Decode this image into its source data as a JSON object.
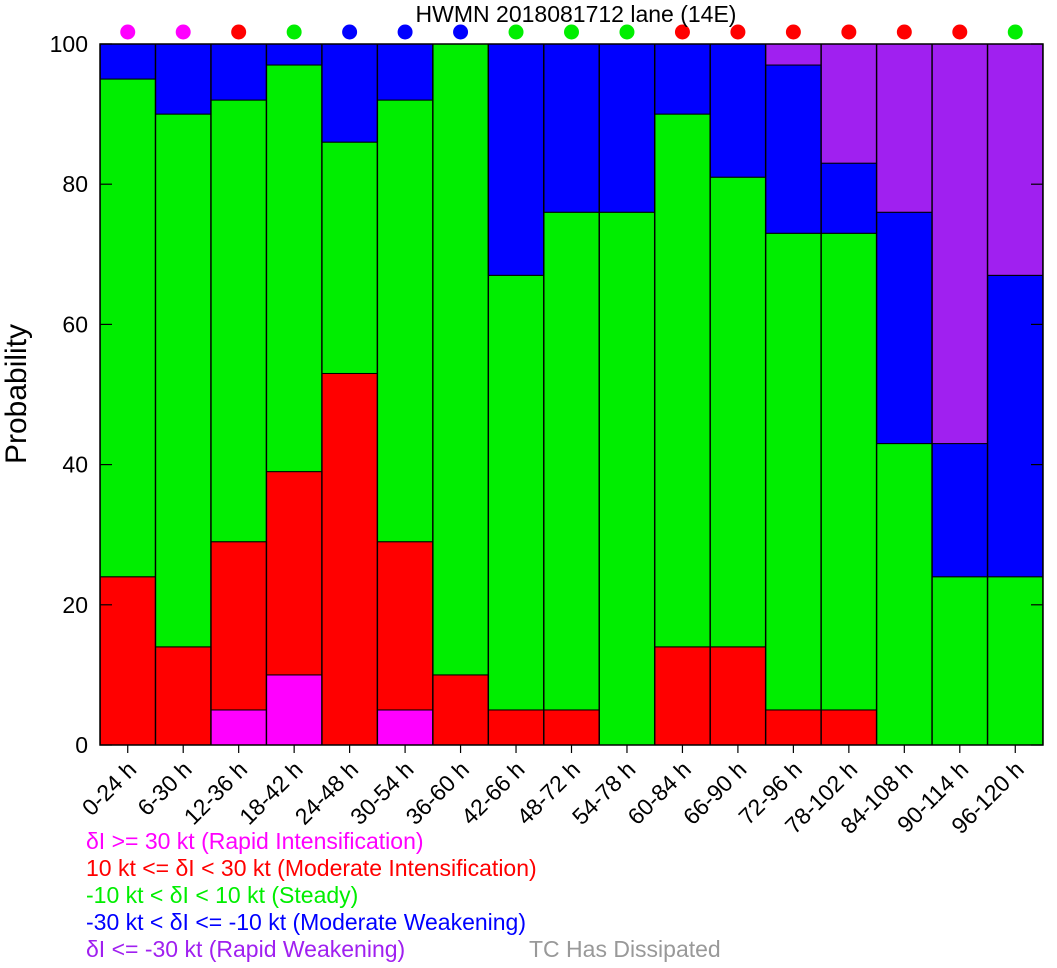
{
  "chart_data": {
    "type": "bar",
    "stacked": true,
    "title": "HWMN 2018081712 lane (14E)",
    "ylabel": "Probability",
    "xlabel": "",
    "ylim": [
      0,
      100
    ],
    "yticks": [
      "0",
      "20",
      "40",
      "60",
      "80",
      "100"
    ],
    "grid": false,
    "categories": [
      "0-24 h",
      "6-30 h",
      "12-36 h",
      "18-42 h",
      "24-48 h",
      "30-54 h",
      "36-60 h",
      "42-66 h",
      "48-72 h",
      "54-78 h",
      "60-84 h",
      "66-90 h",
      "72-96 h",
      "78-102 h",
      "84-108 h",
      "90-114 h",
      "96-120 h"
    ],
    "series": [
      {
        "key": "ri",
        "color": "#ff00ff",
        "values": [
          0,
          0,
          5,
          10,
          0,
          5,
          0,
          0,
          0,
          0,
          0,
          0,
          0,
          0,
          0,
          0,
          0
        ]
      },
      {
        "key": "mi",
        "color": "#ff0000",
        "values": [
          24,
          14,
          24,
          29,
          53,
          24,
          10,
          5,
          5,
          0,
          14,
          14,
          5,
          5,
          0,
          0,
          0
        ]
      },
      {
        "key": "st",
        "color": "#00ee00",
        "values": [
          71,
          76,
          63,
          58,
          33,
          63,
          90,
          62,
          71,
          76,
          76,
          67,
          68,
          68,
          43,
          24,
          24
        ]
      },
      {
        "key": "mw",
        "color": "#0000ff",
        "values": [
          5,
          10,
          8,
          3,
          14,
          8,
          0,
          33,
          24,
          24,
          10,
          19,
          24,
          10,
          33,
          19,
          43
        ]
      },
      {
        "key": "rw",
        "color": "#a020f0",
        "values": [
          0,
          0,
          0,
          0,
          0,
          0,
          0,
          0,
          0,
          0,
          0,
          0,
          3,
          17,
          24,
          57,
          33
        ]
      }
    ],
    "dot_colors": [
      "#ff00ff",
      "#ff00ff",
      "#ff0000",
      "#00ee00",
      "#0000ff",
      "#0000ff",
      "#0000ff",
      "#00ee00",
      "#00ee00",
      "#00ee00",
      "#ff0000",
      "#ff0000",
      "#ff0000",
      "#ff0000",
      "#ff0000",
      "#ff0000",
      "#00ee00"
    ]
  },
  "legend": [
    {
      "text": "δI >= 30 kt (Rapid Intensification)",
      "color": "#ff00ff"
    },
    {
      "text": "10 kt <= δI < 30 kt (Moderate Intensification)",
      "color": "#ff0000"
    },
    {
      "text": "-10 kt < δI < 10 kt (Steady)",
      "color": "#00ee00"
    },
    {
      "text": "-30 kt < δI <= -10 kt (Moderate Weakening)",
      "color": "#0000ff"
    },
    {
      "text": "δI <= -30 kt (Rapid Weakening)",
      "color": "#a020f0"
    }
  ],
  "dissipated": {
    "text": "TC Has Dissipated",
    "color": "#999999"
  }
}
